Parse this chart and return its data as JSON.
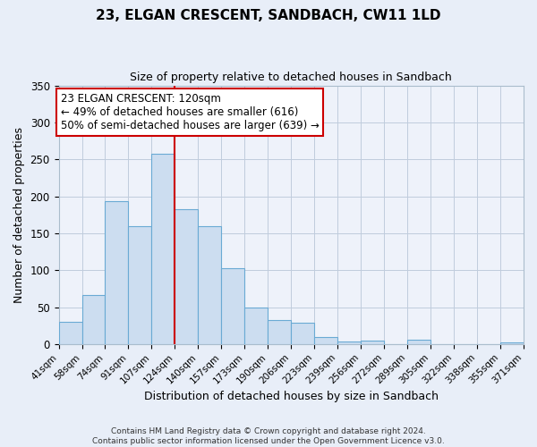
{
  "title": "23, ELGAN CRESCENT, SANDBACH, CW11 1LD",
  "subtitle": "Size of property relative to detached houses in Sandbach",
  "xlabel": "Distribution of detached houses by size in Sandbach",
  "ylabel": "Number of detached properties",
  "bar_labels": [
    "41sqm",
    "58sqm",
    "74sqm",
    "91sqm",
    "107sqm",
    "124sqm",
    "140sqm",
    "157sqm",
    "173sqm",
    "190sqm",
    "206sqm",
    "223sqm",
    "239sqm",
    "256sqm",
    "272sqm",
    "289sqm",
    "305sqm",
    "322sqm",
    "338sqm",
    "355sqm",
    "371sqm"
  ],
  "bar_heights": [
    30,
    66,
    193,
    159,
    258,
    183,
    159,
    103,
    50,
    32,
    29,
    10,
    4,
    5,
    0,
    6,
    0,
    0,
    0,
    2
  ],
  "bar_color": "#ccddf0",
  "bar_edgecolor": "#6aaad4",
  "ylim": [
    0,
    350
  ],
  "yticks": [
    0,
    50,
    100,
    150,
    200,
    250,
    300,
    350
  ],
  "vline_x_bar_index": 5,
  "vline_color": "#cc0000",
  "annotation_title": "23 ELGAN CRESCENT: 120sqm",
  "annotation_line1": "← 49% of detached houses are smaller (616)",
  "annotation_line2": "50% of semi-detached houses are larger (639) →",
  "annotation_box_facecolor": "#ffffff",
  "annotation_box_edgecolor": "#cc0000",
  "footer1": "Contains HM Land Registry data © Crown copyright and database right 2024.",
  "footer2": "Contains public sector information licensed under the Open Government Licence v3.0.",
  "fig_facecolor": "#e8eef8",
  "plot_facecolor": "#eef2fa",
  "grid_color": "#c0ccdd"
}
